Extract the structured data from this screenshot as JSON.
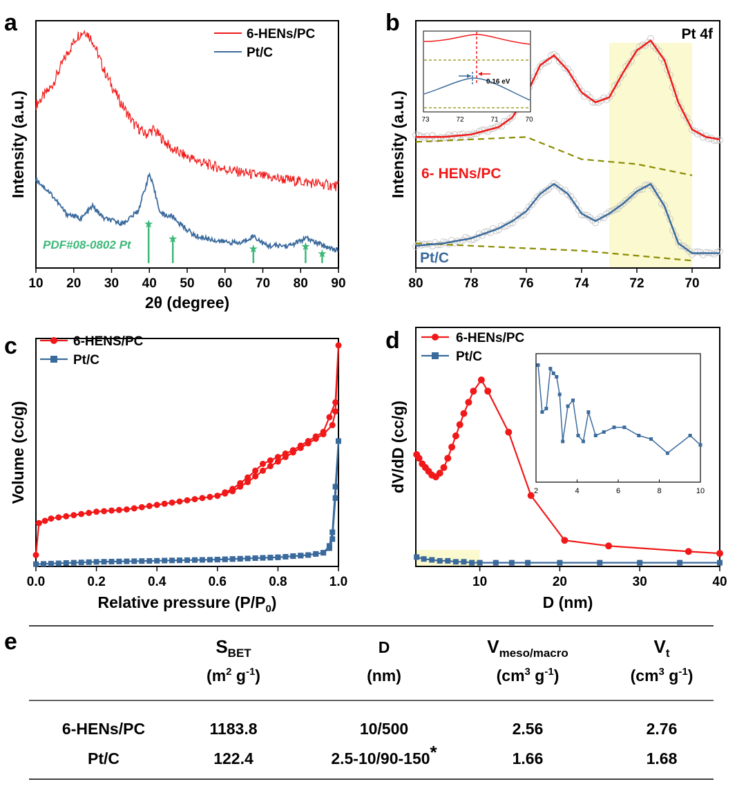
{
  "colors": {
    "red": "#f01818",
    "blue": "#3a6a9c",
    "green": "#3cb878",
    "olive": "#8a8a00",
    "highlight": "#fbf9cf"
  },
  "chart_data": [
    {
      "panel": "a",
      "type": "line",
      "xlabel": "2θ (degree)",
      "ylabel": "Intensity (a.u.)",
      "xlim": [
        10,
        90
      ],
      "xticks": [
        10,
        20,
        30,
        40,
        50,
        60,
        70,
        80,
        90
      ],
      "series": [
        {
          "name": "6-HENs/PC",
          "color": "red",
          "x": [
            10,
            14,
            18,
            21,
            23,
            25,
            28,
            32,
            36,
            39,
            41,
            43,
            46,
            50,
            55,
            60,
            70,
            80,
            90
          ],
          "y": [
            0.66,
            0.73,
            0.86,
            0.94,
            0.96,
            0.92,
            0.8,
            0.68,
            0.58,
            0.54,
            0.56,
            0.53,
            0.48,
            0.45,
            0.42,
            0.4,
            0.37,
            0.35,
            0.33
          ]
        },
        {
          "name": "Pt/C",
          "color": "blue",
          "x": [
            10,
            14,
            18,
            22,
            25,
            28,
            33,
            37,
            39,
            40,
            41,
            43,
            45,
            46,
            48,
            52,
            58,
            64,
            67.5,
            71,
            77,
            81.5,
            86,
            90
          ],
          "y": [
            0.36,
            0.3,
            0.22,
            0.2,
            0.25,
            0.2,
            0.18,
            0.23,
            0.33,
            0.38,
            0.33,
            0.22,
            0.21,
            0.21,
            0.18,
            0.13,
            0.11,
            0.1,
            0.13,
            0.09,
            0.09,
            0.12,
            0.09,
            0.07
          ]
        }
      ],
      "reference": {
        "label": "PDF#08-0802 Pt",
        "x": [
          39.8,
          46.2,
          67.5,
          81.3,
          85.7
        ],
        "h": [
          0.16,
          0.1,
          0.06,
          0.07,
          0.04
        ]
      },
      "legend": [
        "6-HENs/PC",
        "Pt/C"
      ]
    },
    {
      "panel": "b",
      "type": "line",
      "title": "Pt 4f",
      "xlabel": "",
      "ylabel": "Intensity (a.u.)",
      "xlim": [
        80,
        69
      ],
      "xticks": [
        80,
        78,
        76,
        74,
        72,
        70
      ],
      "highlight_range": [
        73,
        70
      ],
      "series": [
        {
          "name": "6- HENs/PC",
          "color": "red",
          "x": [
            80,
            79,
            78,
            77,
            76.5,
            76,
            75.5,
            75,
            74.5,
            74,
            73.5,
            73,
            72.5,
            72,
            71.5,
            71,
            70.5,
            70,
            69.5,
            69
          ],
          "y": [
            0.53,
            0.53,
            0.54,
            0.57,
            0.61,
            0.7,
            0.82,
            0.86,
            0.8,
            0.71,
            0.67,
            0.69,
            0.79,
            0.88,
            0.92,
            0.84,
            0.67,
            0.56,
            0.53,
            0.52
          ]
        },
        {
          "name": "Pt/C",
          "color": "blue",
          "x": [
            80,
            79,
            78,
            77,
            76.5,
            76,
            75.5,
            75,
            74.5,
            74,
            73.5,
            73,
            72.5,
            72,
            71.5,
            71,
            70.5,
            70,
            69.5,
            69
          ],
          "y": [
            0.09,
            0.1,
            0.12,
            0.16,
            0.19,
            0.23,
            0.3,
            0.34,
            0.3,
            0.22,
            0.19,
            0.22,
            0.26,
            0.31,
            0.34,
            0.25,
            0.1,
            0.06,
            0.06,
            0.06
          ]
        }
      ],
      "series_labels": [
        "6- HENs/PC",
        "Pt/C"
      ],
      "inset": {
        "xlim": [
          73,
          70
        ],
        "xticks": [
          73,
          72,
          71,
          70
        ],
        "annotation": "0.16 eV"
      }
    },
    {
      "panel": "c",
      "type": "line",
      "xlabel": "Relative pressure (P/P",
      "xlabel_sub": "0",
      "xlabel_end": ")",
      "ylabel": "Volume (cc/g)",
      "xlim": [
        0,
        1
      ],
      "xticks": [
        "0.0",
        "0.2",
        "0.4",
        "0.6",
        "0.8",
        "1.0"
      ],
      "series": [
        {
          "name": "6-HENS/PC",
          "color": "red",
          "x": [
            0,
            0.01,
            0.05,
            0.1,
            0.2,
            0.3,
            0.4,
            0.5,
            0.6,
            0.65,
            0.7,
            0.75,
            0.8,
            0.85,
            0.9,
            0.95,
            0.98,
            0.99,
            1.0,
            0.99,
            0.95,
            0.9,
            0.85,
            0.8,
            0.75,
            0.7,
            0.65,
            0.6
          ],
          "y": [
            0.05,
            0.19,
            0.21,
            0.22,
            0.24,
            0.25,
            0.27,
            0.29,
            0.31,
            0.33,
            0.37,
            0.42,
            0.46,
            0.5,
            0.54,
            0.58,
            0.62,
            0.68,
            0.97,
            0.72,
            0.59,
            0.55,
            0.51,
            0.48,
            0.45,
            0.39,
            0.34,
            0.31
          ]
        },
        {
          "name": "Pt/C",
          "color": "blue",
          "x": [
            0,
            0.1,
            0.2,
            0.4,
            0.6,
            0.8,
            0.9,
            0.95,
            0.97,
            0.98,
            0.99,
            1.0,
            0.99,
            0.98,
            0.97,
            0.95,
            0.9,
            0.8,
            0.6
          ],
          "y": [
            0.01,
            0.015,
            0.02,
            0.025,
            0.03,
            0.04,
            0.05,
            0.06,
            0.09,
            0.15,
            0.35,
            0.55,
            0.3,
            0.12,
            0.08,
            0.06,
            0.05,
            0.04,
            0.03
          ]
        }
      ],
      "legend": [
        "6-HENS/PC",
        "Pt/C"
      ]
    },
    {
      "panel": "d",
      "type": "line",
      "xlabel": "D (nm)",
      "ylabel": "dV/dD (cc/g)",
      "xlim": [
        2,
        40
      ],
      "xticks": [
        10,
        20,
        30,
        40
      ],
      "highlight_range": [
        2,
        10
      ],
      "series": [
        {
          "name": "6-HENs/PC",
          "color": "red",
          "x": [
            2.1,
            2.4,
            2.8,
            3.2,
            3.6,
            4.0,
            4.5,
            5.0,
            5.5,
            6.0,
            6.5,
            7.0,
            7.5,
            8.0,
            8.6,
            9.2,
            10.2,
            11.0,
            13.6,
            16.4,
            20.6,
            26.1,
            36.1,
            40
          ],
          "y": [
            0.6,
            0.58,
            0.55,
            0.53,
            0.51,
            0.49,
            0.48,
            0.5,
            0.53,
            0.58,
            0.64,
            0.7,
            0.76,
            0.82,
            0.88,
            0.94,
            1.0,
            0.94,
            0.72,
            0.38,
            0.14,
            0.11,
            0.08,
            0.07
          ]
        },
        {
          "name": "Pt/C",
          "color": "blue",
          "x": [
            2.1,
            3,
            4,
            5,
            6,
            7,
            8,
            9,
            10,
            12,
            14,
            16,
            20,
            25,
            30,
            35,
            40
          ],
          "y": [
            0.05,
            0.04,
            0.035,
            0.03,
            0.03,
            0.025,
            0.025,
            0.02,
            0.02,
            0.02,
            0.02,
            0.02,
            0.02,
            0.02,
            0.02,
            0.02,
            0.02
          ]
        }
      ],
      "legend": [
        "6-HENs/PC",
        "Pt/C"
      ],
      "inset": {
        "xlim": [
          2,
          10
        ],
        "xticks": [
          2,
          4,
          6,
          8,
          10
        ],
        "x": [
          2.1,
          2.3,
          2.5,
          2.7,
          2.85,
          3.0,
          3.15,
          3.3,
          3.55,
          3.8,
          4.05,
          4.3,
          4.55,
          4.9,
          5.3,
          5.8,
          6.3,
          7.0,
          7.6,
          8.4,
          9.5,
          10.0
        ],
        "y": [
          0.95,
          0.55,
          0.58,
          0.92,
          0.88,
          0.85,
          0.7,
          0.3,
          0.6,
          0.65,
          0.35,
          0.3,
          0.55,
          0.35,
          0.38,
          0.42,
          0.42,
          0.35,
          0.32,
          0.2,
          0.35,
          0.27
        ]
      }
    }
  ],
  "panel_labels": [
    "a",
    "b",
    "c",
    "d",
    "e"
  ],
  "inset_b": {
    "x_labels": [
      "73",
      "72",
      "71",
      "70"
    ],
    "annotation": "0.16 eV"
  },
  "inset_d": {
    "x_labels": [
      "2",
      "4",
      "6",
      "8",
      "10"
    ]
  },
  "table": {
    "headers": [
      {
        "main": "S",
        "sub": "BET",
        "unit_a": "(m",
        "sup": "2",
        "unit_b": " g",
        "sup2": "-1",
        "unit_c": ")"
      },
      {
        "main": "D",
        "sub": "",
        "unit_a": "(nm)",
        "sup": "",
        "unit_b": "",
        "sup2": "",
        "unit_c": ""
      },
      {
        "main": "V",
        "sub": "meso/macro",
        "unit_a": "(cm",
        "sup": "3",
        "unit_b": " g",
        "sup2": "-1",
        "unit_c": ")"
      },
      {
        "main": "V",
        "sub": "t",
        "unit_a": "(cm",
        "sup": "3",
        "unit_b": " g",
        "sup2": "-1",
        "unit_c": ")"
      }
    ],
    "rows": [
      {
        "name": "6-HENs/PC",
        "sbet": "1183.8",
        "d": "10/500",
        "d_mark": "",
        "vmeso": "2.56",
        "vt": "2.76"
      },
      {
        "name": "Pt/C",
        "sbet": "122.4",
        "d": "2.5-10/90-150",
        "d_mark": "*",
        "vmeso": "1.66",
        "vt": "1.68"
      }
    ]
  }
}
